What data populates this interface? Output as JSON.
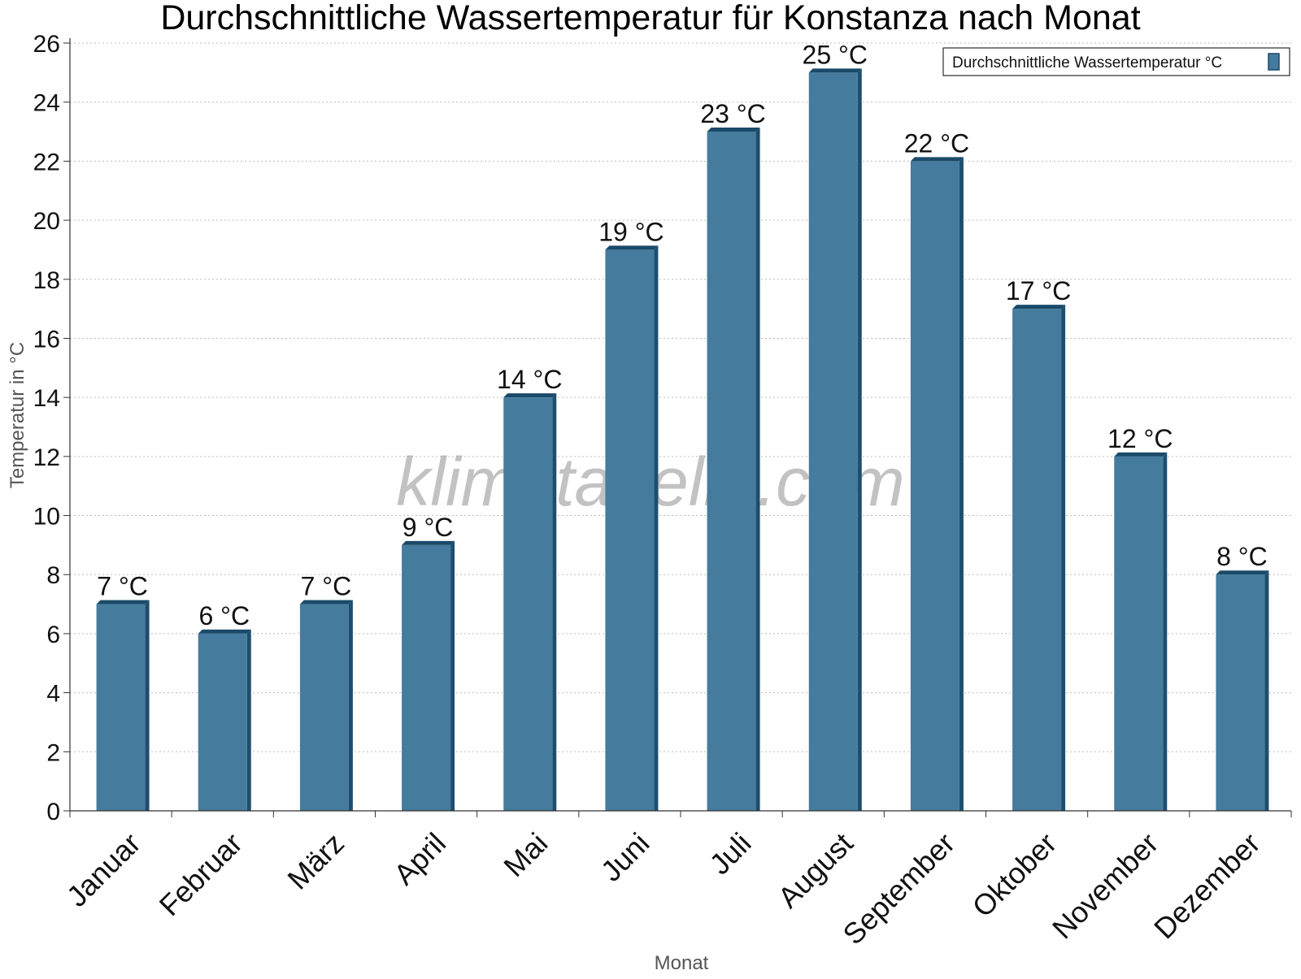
{
  "chart_data": {
    "type": "bar",
    "title": "Durchschnittliche Wassertemperatur für Konstanza nach Monat",
    "xlabel": "Monat",
    "ylabel": "Temperatur in °C",
    "categories": [
      "Januar",
      "Februar",
      "März",
      "April",
      "Mai",
      "Juni",
      "Juli",
      "August",
      "September",
      "Oktober",
      "November",
      "Dezember"
    ],
    "series": [
      {
        "name": "Durchschnittliche Wassertemperatur °C",
        "values": [
          7,
          6,
          7,
          9,
          14,
          19,
          23,
          25,
          22,
          17,
          12,
          8
        ],
        "data_labels": [
          "7 °C",
          "6 °C",
          "7 °C",
          "9 °C",
          "14 °C",
          "19 °C",
          "23 °C",
          "25 °C",
          "22 °C",
          "17 °C",
          "12 °C",
          "8 °C"
        ],
        "color": "#457b9d"
      }
    ],
    "ylim": [
      0,
      26
    ],
    "yticks": [
      0,
      2,
      4,
      6,
      8,
      10,
      12,
      14,
      16,
      18,
      20,
      22,
      24,
      26
    ],
    "grid": true,
    "legend_position": "top-right",
    "watermark": "klimatabelle.com"
  },
  "colors": {
    "bar_fill": "#457b9d",
    "bar_side": "#1d4e6e",
    "bar_top": "#1a4a69"
  }
}
